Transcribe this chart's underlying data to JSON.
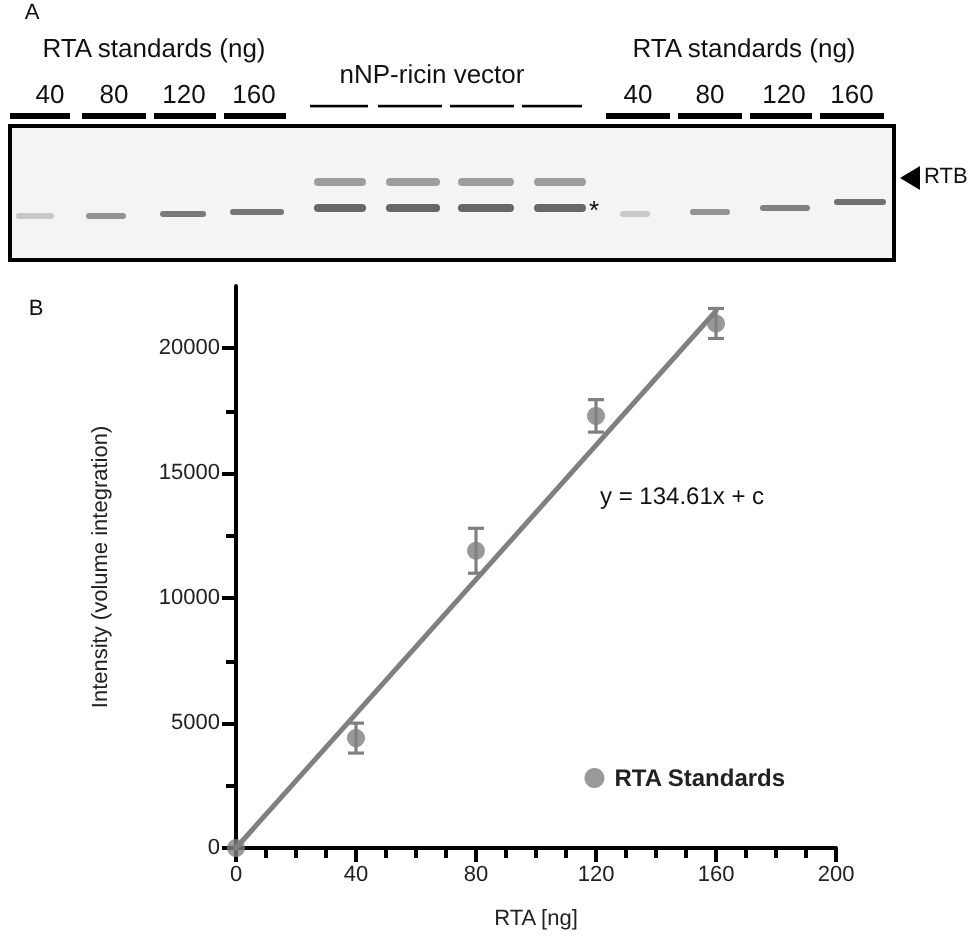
{
  "chart_data": {
    "type": "scatter",
    "annotations": [
      "A",
      "RTA standards (ng)",
      "40",
      "80",
      "120",
      "160",
      "nNP-ricin vector",
      "RTA standards (ng)",
      "40",
      "80",
      "120",
      "160",
      "RTB",
      "*",
      "B",
      "y = 134.61x + c"
    ],
    "xlabel": "RTA [ng]",
    "ylabel": "Intensity (volume integration)",
    "xlim": [
      0,
      200
    ],
    "xticks": [
      0,
      {
        "value": 10,
        "label": null
      },
      {
        "value": 20,
        "label": null
      },
      {
        "value": 30,
        "label": null
      },
      40,
      {
        "value": 50,
        "label": null
      },
      {
        "value": 60,
        "label": null
      },
      {
        "value": 70,
        "label": null
      },
      80,
      {
        "value": 90,
        "label": null
      },
      {
        "value": 100,
        "label": null
      },
      {
        "value": 110,
        "label": null
      },
      120,
      {
        "value": 130,
        "label": null
      },
      {
        "value": 140,
        "label": null
      },
      {
        "value": 150,
        "label": null
      },
      160,
      {
        "value": 170,
        "label": null
      },
      {
        "value": 180,
        "label": null
      },
      {
        "value": 190,
        "label": null
      },
      200
    ],
    "ylim": [
      0,
      22500
    ],
    "yticks": [
      0,
      {
        "value": 2500,
        "label": null
      },
      5000,
      {
        "value": 7500,
        "label": null
      },
      10000,
      {
        "value": 12500,
        "label": null
      },
      15000,
      {
        "value": 17500,
        "label": null
      },
      20000
    ],
    "series": [
      {
        "name": "RTA Standards",
        "color": "#808080",
        "x": [
          0,
          40,
          80,
          120,
          160
        ],
        "values": [
          0,
          4400,
          11900,
          17300,
          21000
        ],
        "errors": [
          null,
          600,
          900,
          650,
          600
        ]
      },
      {
        "type": "line",
        "color": "#808080",
        "x": [
          0,
          160
        ],
        "values": [
          0,
          21500
        ],
        "marker": "none"
      }
    ],
    "marker": "circle",
    "legend": "bottom right"
  }
}
